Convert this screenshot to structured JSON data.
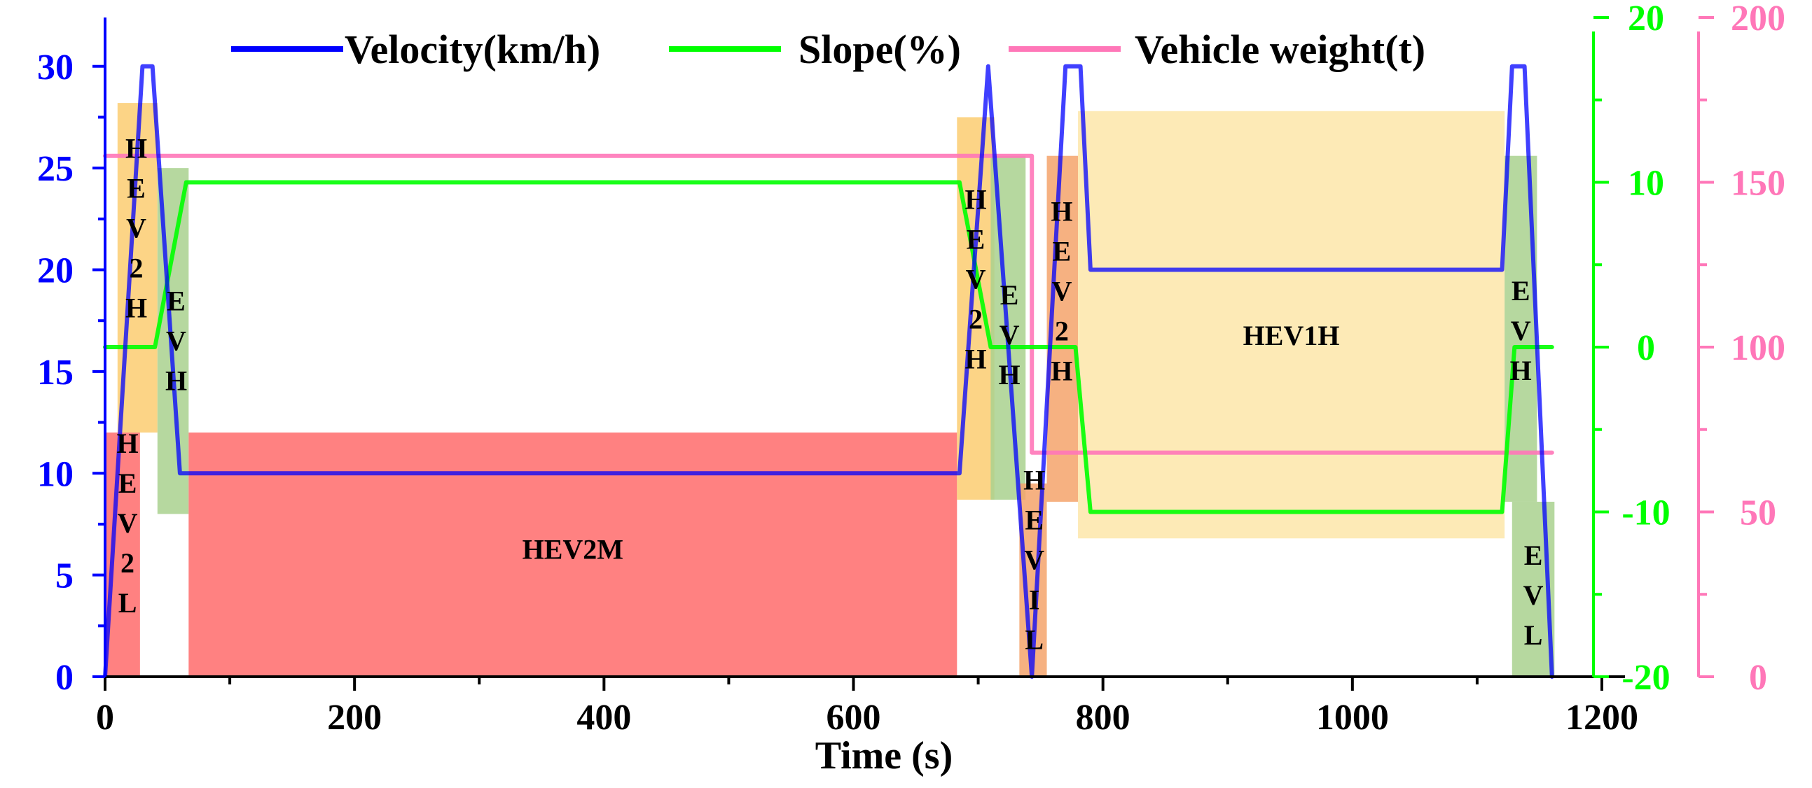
{
  "chart_data": {
    "type": "line",
    "xlabel": "Time (s)",
    "xlim": [
      0,
      1200
    ],
    "x_ticks": [
      0,
      200,
      400,
      600,
      800,
      1000,
      1200
    ],
    "x_tick_labels": [
      "0",
      "200",
      "400",
      "600",
      "800",
      "1000",
      "1200"
    ],
    "y_axes": [
      {
        "name": "velocity",
        "color": "#0000ff",
        "ylim": [
          0,
          32.4
        ],
        "ticks": [
          0,
          5,
          10,
          15,
          20,
          25,
          30
        ],
        "tick_labels": [
          "0",
          "5",
          "10",
          "15",
          "20",
          "25",
          "30"
        ],
        "position": "left"
      },
      {
        "name": "slope",
        "color": "#00ff00",
        "ylim": [
          -20,
          20
        ],
        "ticks": [
          -20,
          -10,
          0,
          10,
          20
        ],
        "tick_labels": [
          "-20",
          "-10",
          "0",
          "10",
          "20"
        ],
        "position": "right-inner"
      },
      {
        "name": "weight",
        "color": "#ff77b8",
        "ylim": [
          0,
          200
        ],
        "ticks": [
          0,
          50,
          100,
          150,
          200
        ],
        "tick_labels": [
          "0",
          "50",
          "100",
          "150",
          "200"
        ],
        "position": "right-outer"
      }
    ],
    "legend": [
      {
        "label": "Velocity(km/h)",
        "color": "#0000ff"
      },
      {
        "label": "Slope(%)",
        "color": "#00ff00"
      },
      {
        "label": "Vehicle weight(t)",
        "color": "#ff77b8"
      }
    ],
    "series": [
      {
        "name": "Velocity(km/h)",
        "axis": "velocity",
        "color": "#0000ff",
        "points": [
          [
            0,
            0
          ],
          [
            30,
            30
          ],
          [
            38,
            30
          ],
          [
            60,
            10
          ],
          [
            685,
            10
          ],
          [
            708,
            30
          ],
          [
            743,
            0
          ],
          [
            770,
            30
          ],
          [
            782,
            30
          ],
          [
            790,
            20
          ],
          [
            1120,
            20
          ],
          [
            1128,
            30
          ],
          [
            1138,
            30
          ],
          [
            1160,
            0
          ]
        ]
      },
      {
        "name": "Slope(%)",
        "axis": "slope",
        "color": "#00ff00",
        "points": [
          [
            0,
            0
          ],
          [
            40,
            0
          ],
          [
            65,
            10
          ],
          [
            685,
            10
          ],
          [
            710,
            0
          ],
          [
            778,
            0
          ],
          [
            790,
            -10
          ],
          [
            1120,
            -10
          ],
          [
            1130,
            0
          ],
          [
            1160,
            0
          ]
        ]
      },
      {
        "name": "Vehicle weight(t)",
        "axis": "weight",
        "color": "#ff77b8",
        "points": [
          [
            0,
            158
          ],
          [
            743,
            158
          ],
          [
            743,
            68
          ],
          [
            1160,
            68
          ]
        ]
      }
    ],
    "modes": [
      {
        "label": "HEV2L",
        "x0": 0,
        "x1": 28,
        "vtop": 12,
        "vbot": 0,
        "color": "#ff6b6b",
        "opacity": 0.85,
        "text_x": 18,
        "text_vtop": 11,
        "vertical": true
      },
      {
        "label": "HEV2H",
        "x0": 10,
        "x1": 42,
        "vtop": 28.2,
        "vbot": 12,
        "color": "#fbc55e",
        "opacity": 0.75,
        "text_x": 25,
        "text_vtop": 25.5,
        "vertical": true
      },
      {
        "label": "EVH",
        "x0": 42,
        "x1": 67,
        "vtop": 25,
        "vbot": 8,
        "color": "#a9d18e",
        "opacity": 0.85,
        "text_x": 57,
        "text_vtop": 18,
        "vertical": true
      },
      {
        "label": "HEV2M",
        "x0": 67,
        "x1": 683,
        "vtop": 12,
        "vbot": 0,
        "color": "#ff6b6b",
        "opacity": 0.85,
        "text_x": 375,
        "text_vtop": 5.8,
        "vertical": false
      },
      {
        "label": "HEV2H",
        "x0": 683,
        "x1": 713,
        "vtop": 27.5,
        "vbot": 8.7,
        "color": "#fbc55e",
        "opacity": 0.75,
        "text_x": 698,
        "text_vtop": 23,
        "vertical": true
      },
      {
        "label": "EVH",
        "x0": 710,
        "x1": 738,
        "vtop": 25.6,
        "vbot": 8.7,
        "color": "#a9d18e",
        "opacity": 0.85,
        "text_x": 725,
        "text_vtop": 18.3,
        "vertical": true
      },
      {
        "label": "HEVIL",
        "x0": 733,
        "x1": 755,
        "vtop": 9.5,
        "vbot": 0,
        "color": "#f4a36b",
        "opacity": 0.85,
        "text_x": 745,
        "text_vtop": 9.2,
        "vertical": true
      },
      {
        "label": "HEV2H",
        "x0": 755,
        "x1": 780,
        "vtop": 25.6,
        "vbot": 8.6,
        "color": "#f4a36b",
        "opacity": 0.85,
        "text_x": 767,
        "text_vtop": 22.4,
        "vertical": true
      },
      {
        "label": "HEV1H",
        "x0": 780,
        "x1": 1122,
        "vtop": 27.8,
        "vbot": 6.8,
        "color": "#fbd97a",
        "opacity": 0.55,
        "text_x": 951,
        "text_vtop": 16.3,
        "vertical": false
      },
      {
        "label": "EVH",
        "x0": 1122,
        "x1": 1148,
        "vtop": 25.6,
        "vbot": 8.6,
        "color": "#a9d18e",
        "opacity": 0.85,
        "text_x": 1135,
        "text_vtop": 18.5,
        "vertical": true
      },
      {
        "label": "EVL",
        "x0": 1128,
        "x1": 1162,
        "vtop": 8.6,
        "vbot": 0,
        "color": "#a9d18e",
        "opacity": 0.85,
        "text_x": 1145,
        "text_vtop": 5.5,
        "vertical": true
      }
    ]
  }
}
